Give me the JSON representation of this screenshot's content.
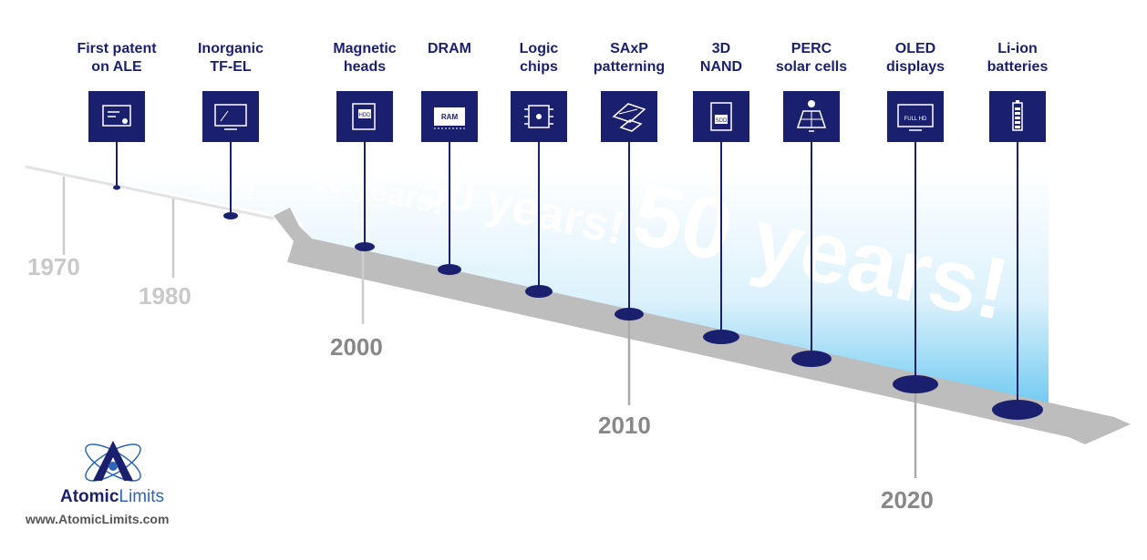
{
  "milestones": [
    {
      "label_l1": "First patent",
      "label_l2": "on ALE",
      "icon": "certificate-icon"
    },
    {
      "label_l1": "Inorganic",
      "label_l2": "TF-EL",
      "icon": "monitor-icon"
    },
    {
      "label_l1": "Magnetic",
      "label_l2": "heads",
      "icon": "hard-drive-icon",
      "icon_text": "HDD"
    },
    {
      "label_l1": "DRAM",
      "label_l2": "",
      "icon": "ram-chip-icon",
      "icon_text": "RAM"
    },
    {
      "label_l1": "Logic",
      "label_l2": "chips",
      "icon": "processor-chip-icon"
    },
    {
      "label_l1": "SAxP",
      "label_l2": "patterning",
      "icon": "patterning-layers-icon"
    },
    {
      "label_l1": "3D",
      "label_l2": "NAND",
      "icon": "ssd-icon",
      "icon_text": "SDD"
    },
    {
      "label_l1": "PERC",
      "label_l2": "solar cells",
      "icon": "solar-panel-icon"
    },
    {
      "label_l1": "OLED",
      "label_l2": "displays",
      "icon": "tv-icon",
      "icon_text": "FULL HD"
    },
    {
      "label_l1": "Li-ion",
      "label_l2": "batteries",
      "icon": "battery-icon"
    }
  ],
  "years": [
    "1970",
    "1980",
    "2000",
    "2010",
    "2020"
  ],
  "watermark_texts": [
    "50 years!",
    "50 years!",
    "50 years!",
    "50 years!"
  ],
  "logo": {
    "name_bold": "Atomic",
    "name_light": "Limits",
    "url": "www.AtomicLimits.com"
  },
  "colors": {
    "navy": "#1a1f6e",
    "gray_band": "#bdbdbd",
    "sky_blue": "#3fb4e8",
    "year_light": "#c9c9c9",
    "year_dark": "#888888"
  }
}
